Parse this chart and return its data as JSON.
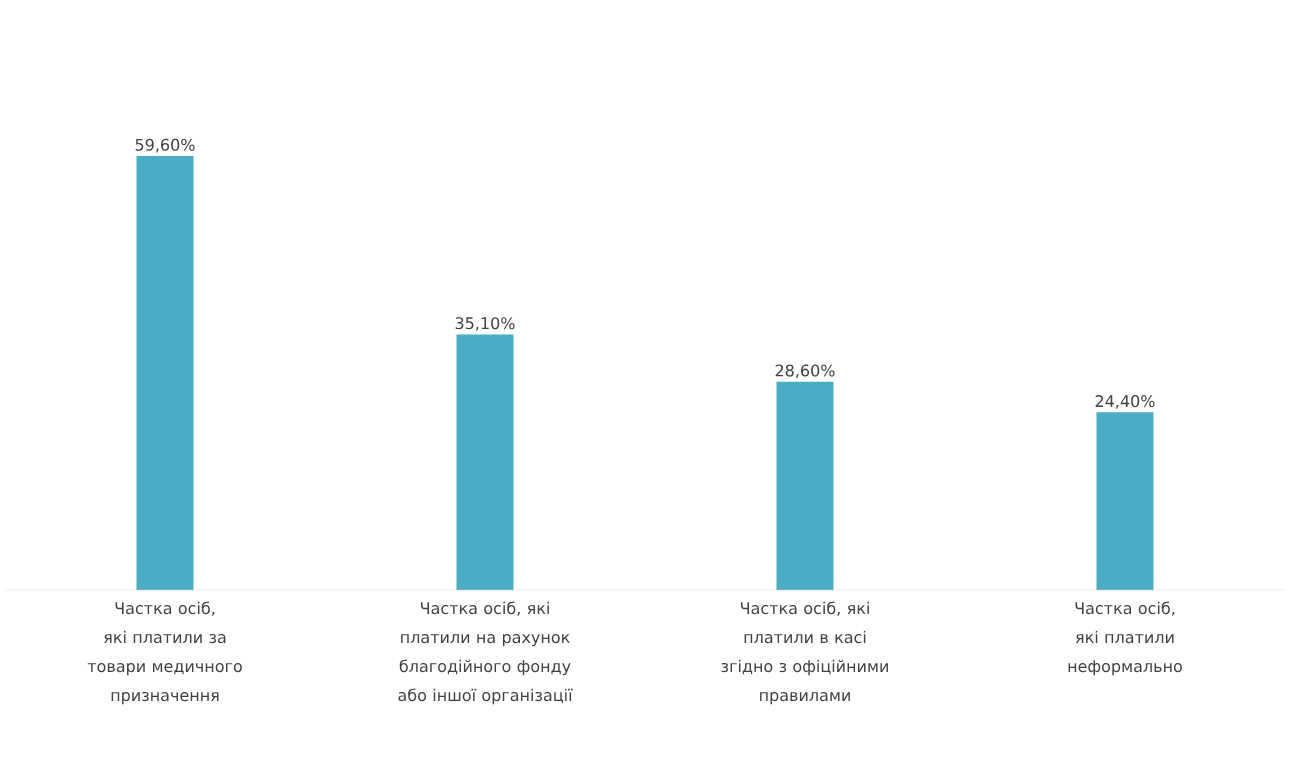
{
  "chart_data": {
    "type": "bar",
    "color": "#4bacc6",
    "categories": [
      "Частка осіб, які платили за товари медичного призначення",
      "Частка осіб, які платили на рахунок благодійного фонду або іншої організації",
      "Частка осіб, які платили в касі згідно з офіційними правилами",
      "Частка осіб, які платили неформально"
    ],
    "values": [
      59.6,
      35.1,
      28.6,
      24.4
    ],
    "value_labels": [
      "59,60%",
      "35,10%",
      "28,60%",
      "24,40%"
    ]
  }
}
